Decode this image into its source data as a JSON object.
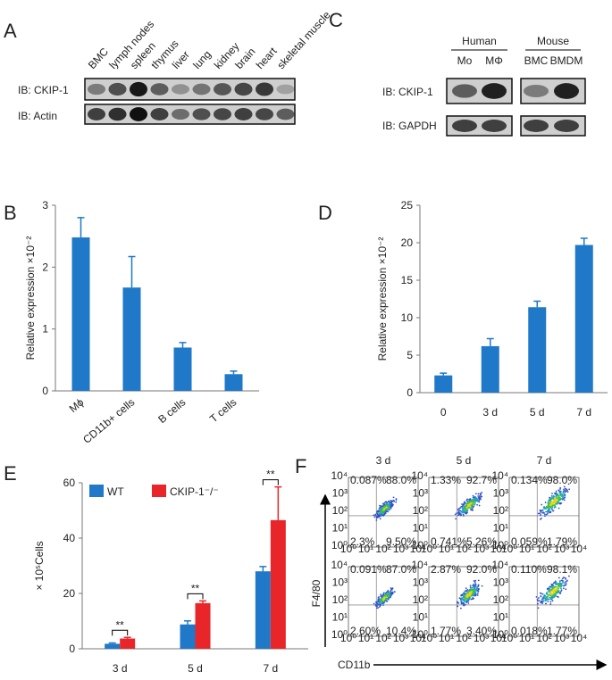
{
  "panel_labels": [
    "A",
    "B",
    "C",
    "D",
    "E",
    "F"
  ],
  "blot_a": {
    "lanes": [
      "BMC",
      "lymph nodes",
      "spleen",
      "thymus",
      "liver",
      "lung",
      "kidney",
      "brain",
      "heart",
      "skeletal muscle"
    ],
    "rows": [
      "IB: CKIP-1",
      "IB: Actin"
    ]
  },
  "blot_c": {
    "groups": [
      {
        "name": "Human",
        "lanes": [
          "Mo",
          "MΦ"
        ]
      },
      {
        "name": "Mouse",
        "lanes": [
          "BMC",
          "BMDM"
        ]
      }
    ],
    "rows": [
      "IB: CKIP-1",
      "IB: GAPDH"
    ]
  },
  "chart_data": [
    {
      "type": "bar",
      "y_label": "Relative expression ×10⁻²",
      "categories": [
        "Mϕ",
        "CD11b+ cells",
        "B cells",
        "T cells"
      ],
      "values": [
        2.48,
        1.67,
        0.7,
        0.27
      ],
      "errors": [
        0.32,
        0.5,
        0.08,
        0.05
      ],
      "color": "#1f78c8",
      "ylim": [
        0,
        3
      ],
      "yticks": [
        0,
        1,
        2,
        3
      ]
    },
    {
      "type": "bar",
      "y_label": "Relative expression ×10⁻²",
      "categories": [
        "0",
        "3 d",
        "5 d",
        "7 d"
      ],
      "values": [
        2.3,
        6.2,
        11.4,
        19.7
      ],
      "errors": [
        0.3,
        1.0,
        0.8,
        0.9
      ],
      "color": "#1f78c8",
      "ylim": [
        0,
        25
      ],
      "yticks": [
        0,
        5,
        10,
        15,
        20,
        25
      ]
    },
    {
      "type": "bar",
      "y_label": "× 10⁵Cells",
      "categories": [
        "3 d",
        "5 d",
        "7 d"
      ],
      "series": [
        {
          "name": "WT",
          "color": "#1f78c8",
          "values": [
            1.8,
            8.8,
            28
          ],
          "errors": [
            0.3,
            1.3,
            1.7
          ]
        },
        {
          "name": "CKIP-1⁻/⁻",
          "color": "#e8262a",
          "values": [
            3.7,
            16.5,
            46.5
          ],
          "errors": [
            0.4,
            0.8,
            12
          ]
        }
      ],
      "ylim": [
        0,
        60
      ],
      "yticks": [
        0,
        20,
        40,
        60
      ],
      "legend": "top-left",
      "annotations": [
        "**",
        "**",
        "**"
      ]
    }
  ],
  "flow": {
    "columns": [
      "3 d",
      "5 d",
      "7 d"
    ],
    "x_label": "CD11b",
    "y_label": "F4/80",
    "axis_ticks": [
      "10⁰",
      "10¹",
      "10²",
      "10³",
      "10⁴"
    ],
    "plots": [
      [
        [
          "0.087%",
          "88.0%",
          "2.3%",
          "9.50%"
        ],
        [
          "1.33%",
          "92.7%",
          "0.741%",
          "5.26%"
        ],
        [
          "0.134%",
          "98.0%",
          "0.059%",
          "1.79%"
        ]
      ],
      [
        [
          "0.091%",
          "87.0%",
          "2.60%",
          "10.4%"
        ],
        [
          "2.87%",
          "92.0%",
          "1.77%",
          "3.40%"
        ],
        [
          "0.110%",
          "98.1%",
          "0.018%",
          "1.77%"
        ]
      ]
    ]
  }
}
